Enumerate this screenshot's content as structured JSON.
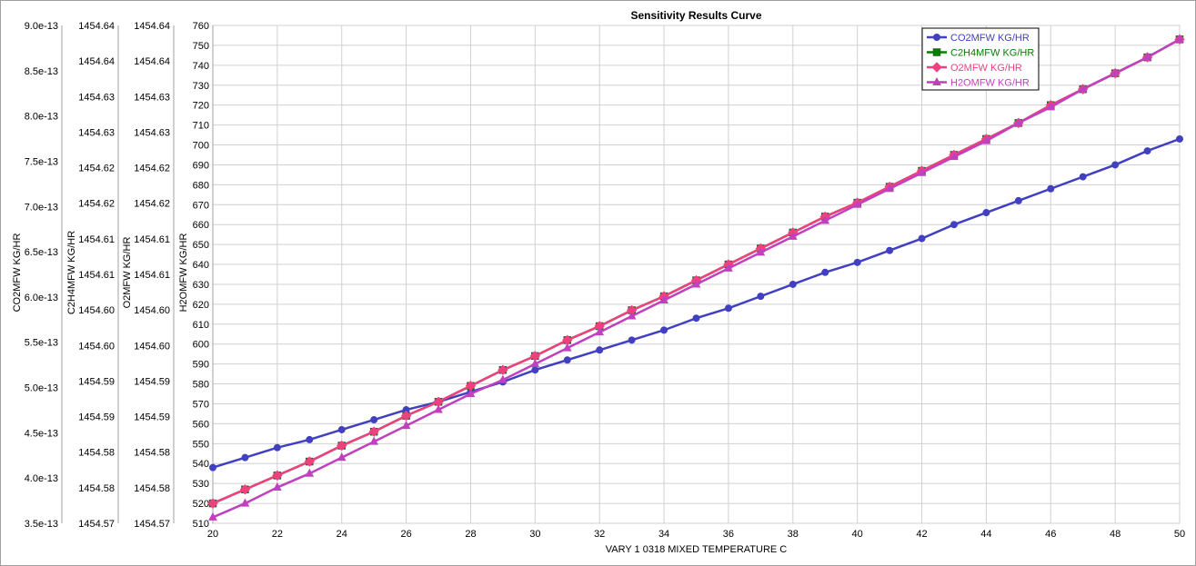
{
  "chart_data": {
    "type": "line",
    "title": "Sensitivity Results Curve",
    "xlabel": "VARY   1 0318 MIXED TEMPERATURE C",
    "x": [
      20,
      21,
      22,
      23,
      24,
      25,
      26,
      27,
      28,
      29,
      30,
      31,
      32,
      33,
      34,
      35,
      36,
      37,
      38,
      39,
      40,
      41,
      42,
      43,
      44,
      45,
      46,
      47,
      48,
      49,
      50
    ],
    "x_ticks": [
      "20",
      "22",
      "24",
      "26",
      "28",
      "30",
      "32",
      "34",
      "36",
      "38",
      "40",
      "42",
      "44",
      "46",
      "48",
      "50"
    ],
    "xlim": [
      20,
      50
    ],
    "grid": true,
    "legend_position": "top-right",
    "y_axes": [
      {
        "label": "CO2MFW KG/HR",
        "ticks": [
          "9.0e-13",
          "8.5e-13",
          "8.0e-13",
          "7.5e-13",
          "7.0e-13",
          "6.5e-13",
          "6.0e-13",
          "5.5e-13",
          "5.0e-13",
          "4.5e-13",
          "4.0e-13",
          "3.5e-13"
        ]
      },
      {
        "label": "C2H4MFW KG/HR",
        "ticks": [
          "1454.64",
          "1454.64",
          "1454.63",
          "1454.63",
          "1454.62",
          "1454.62",
          "1454.61",
          "1454.61",
          "1454.60",
          "1454.60",
          "1454.59",
          "1454.59",
          "1454.58",
          "1454.58",
          "1454.57"
        ]
      },
      {
        "label": "O2MFW KG/HR",
        "ticks": [
          "1454.64",
          "1454.64",
          "1454.63",
          "1454.63",
          "1454.62",
          "1454.62",
          "1454.61",
          "1454.61",
          "1454.60",
          "1454.60",
          "1454.59",
          "1454.59",
          "1454.58",
          "1454.58",
          "1454.57"
        ]
      },
      {
        "label": "H2OMFW KG/HR",
        "ticks": [
          "760",
          "750",
          "740",
          "730",
          "720",
          "710",
          "700",
          "690",
          "680",
          "670",
          "660",
          "650",
          "640",
          "630",
          "620",
          "610",
          "600",
          "590",
          "580",
          "570",
          "560",
          "550",
          "540",
          "530",
          "520",
          "510"
        ],
        "ylim": [
          510,
          760
        ]
      }
    ],
    "series": [
      {
        "name": "CO2MFW KG/HR",
        "color": "#4040c0",
        "marker": "circle",
        "values": [
          538,
          543,
          548,
          552,
          557,
          562,
          567,
          571,
          576,
          581,
          587,
          592,
          597,
          602,
          607,
          613,
          618,
          624,
          630,
          636,
          641,
          647,
          653,
          660,
          666,
          672,
          678,
          684,
          690,
          697,
          703
        ]
      },
      {
        "name": "C2H4MFW KG/HR",
        "color": "#008000",
        "marker": "square",
        "values": [
          520,
          527,
          534,
          541,
          549,
          556,
          564,
          571,
          579,
          587,
          594,
          602,
          609,
          617,
          624,
          632,
          640,
          648,
          656,
          664,
          671,
          679,
          687,
          695,
          703,
          711,
          720,
          728,
          736,
          744,
          753
        ]
      },
      {
        "name": "O2MFW KG/HR",
        "color": "#f04080",
        "marker": "diamond",
        "values": [
          520,
          527,
          534,
          541,
          549,
          556,
          564,
          571,
          579,
          587,
          594,
          602,
          609,
          617,
          624,
          632,
          640,
          648,
          656,
          664,
          671,
          679,
          687,
          695,
          703,
          711,
          720,
          728,
          736,
          744,
          753
        ]
      },
      {
        "name": "H2OMFW KG/HR",
        "color": "#c040c0",
        "marker": "triangle",
        "values": [
          513,
          520,
          528,
          535,
          543,
          551,
          559,
          567,
          575,
          582,
          590,
          598,
          606,
          614,
          622,
          630,
          638,
          646,
          654,
          662,
          670,
          678,
          686,
          694,
          702,
          711,
          719,
          728,
          736,
          744,
          753
        ]
      }
    ]
  }
}
